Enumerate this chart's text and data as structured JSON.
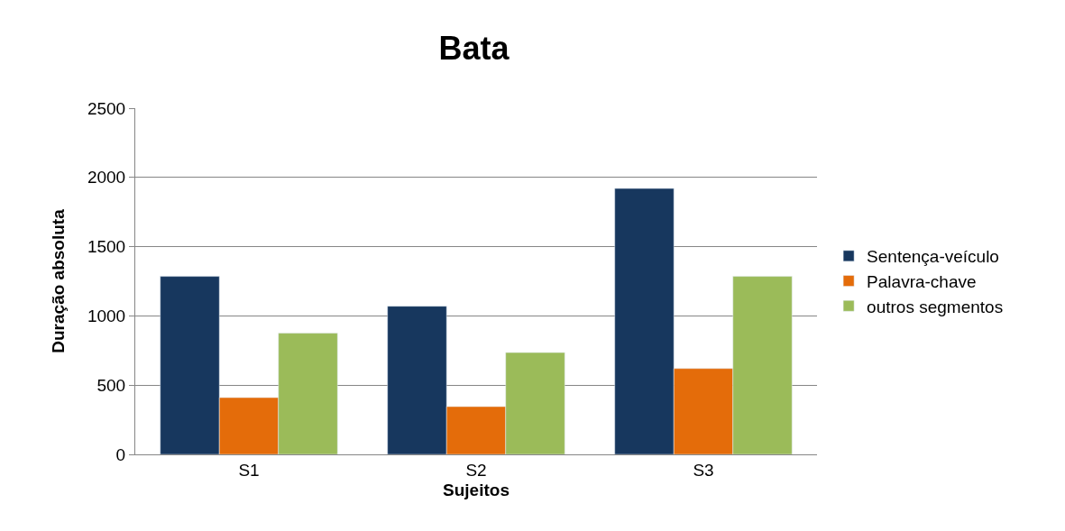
{
  "chart_data": {
    "type": "bar",
    "title": "Bata",
    "xlabel": "Sujeitos",
    "ylabel": "Duração absoluta",
    "categories": [
      "S1",
      "S2",
      "S3"
    ],
    "series": [
      {
        "name": "Sentença-veículo",
        "color": "#17375e",
        "values": [
          1285,
          1070,
          1920
        ]
      },
      {
        "name": "Palavra-chave",
        "color": "#e46c0a",
        "values": [
          410,
          345,
          620
        ]
      },
      {
        "name": "outros segmentos",
        "color": "#9bbb59",
        "values": [
          875,
          735,
          1285
        ]
      }
    ],
    "ylim": [
      0,
      2500
    ],
    "yticks": [
      0,
      500,
      1000,
      1500,
      2000,
      2500
    ],
    "grid": "y",
    "legend": "right"
  }
}
